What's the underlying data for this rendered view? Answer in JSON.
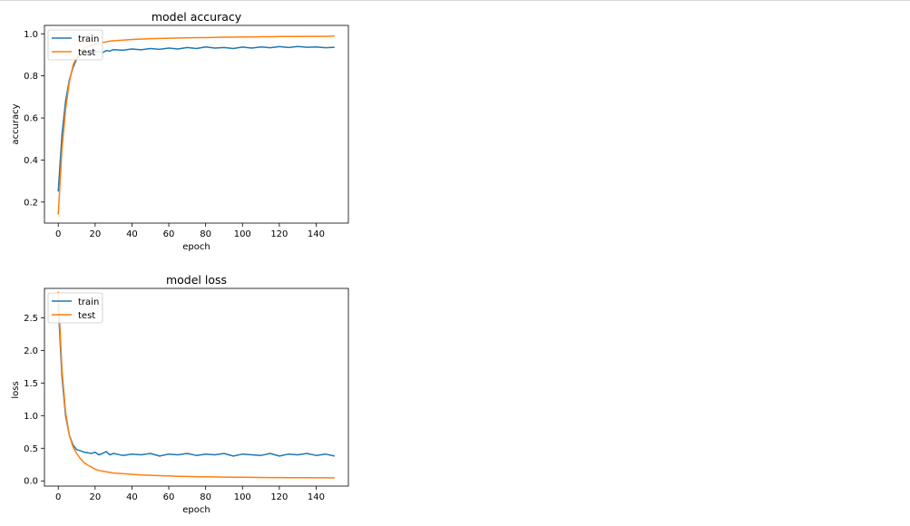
{
  "chart_data": [
    {
      "type": "line",
      "title": "model accuracy",
      "xlabel": "epoch",
      "ylabel": "accuracy",
      "xlim": [
        -7.5,
        157.5
      ],
      "ylim": [
        0.1,
        1.04
      ],
      "xticks": [
        0,
        20,
        40,
        60,
        80,
        100,
        120,
        140
      ],
      "xtick_labels": [
        "0",
        "20",
        "40",
        "60",
        "80",
        "100",
        "120",
        "140"
      ],
      "yticks": [
        0.2,
        0.4,
        0.6,
        0.8,
        1.0
      ],
      "ytick_labels": [
        "0.2",
        "0.4",
        "0.6",
        "0.8",
        "1.0"
      ],
      "legend_position": "upper-left",
      "grid": false,
      "series": [
        {
          "name": "train",
          "color": "#1f77b4",
          "x": [
            0,
            2,
            4,
            6,
            8,
            10,
            12,
            14,
            16,
            18,
            20,
            22,
            24,
            26,
            28,
            30,
            35,
            40,
            45,
            50,
            55,
            60,
            65,
            70,
            75,
            80,
            85,
            90,
            95,
            100,
            105,
            110,
            115,
            120,
            125,
            130,
            135,
            140,
            145,
            150
          ],
          "y": [
            0.25,
            0.52,
            0.68,
            0.78,
            0.84,
            0.88,
            0.9,
            0.905,
            0.91,
            0.915,
            0.912,
            0.918,
            0.91,
            0.92,
            0.918,
            0.925,
            0.922,
            0.928,
            0.924,
            0.93,
            0.926,
            0.932,
            0.928,
            0.935,
            0.93,
            0.938,
            0.932,
            0.935,
            0.93,
            0.937,
            0.932,
            0.938,
            0.934,
            0.939,
            0.935,
            0.94,
            0.936,
            0.938,
            0.934,
            0.936
          ]
        },
        {
          "name": "test",
          "color": "#ff7f0e",
          "x": [
            0,
            2,
            4,
            6,
            8,
            10,
            12,
            14,
            16,
            18,
            20,
            22,
            24,
            26,
            28,
            30,
            35,
            40,
            45,
            50,
            55,
            60,
            65,
            70,
            75,
            80,
            85,
            90,
            95,
            100,
            105,
            110,
            115,
            120,
            125,
            130,
            135,
            140,
            145,
            150
          ],
          "y": [
            0.14,
            0.45,
            0.64,
            0.77,
            0.85,
            0.89,
            0.915,
            0.93,
            0.94,
            0.945,
            0.95,
            0.955,
            0.958,
            0.962,
            0.965,
            0.967,
            0.97,
            0.973,
            0.975,
            0.977,
            0.978,
            0.979,
            0.98,
            0.981,
            0.982,
            0.982,
            0.983,
            0.984,
            0.984,
            0.985,
            0.985,
            0.986,
            0.986,
            0.987,
            0.987,
            0.987,
            0.988,
            0.988,
            0.988,
            0.989
          ]
        }
      ]
    },
    {
      "type": "line",
      "title": "model loss",
      "xlabel": "epoch",
      "ylabel": "loss",
      "xlim": [
        -7.5,
        157.5
      ],
      "ylim": [
        -0.08,
        2.95
      ],
      "xticks": [
        0,
        20,
        40,
        60,
        80,
        100,
        120,
        140
      ],
      "xtick_labels": [
        "0",
        "20",
        "40",
        "60",
        "80",
        "100",
        "120",
        "140"
      ],
      "yticks": [
        0.0,
        0.5,
        1.0,
        1.5,
        2.0,
        2.5
      ],
      "ytick_labels": [
        "0.0",
        "0.5",
        "1.0",
        "1.5",
        "2.0",
        "2.5"
      ],
      "legend_position": "upper-left",
      "grid": false,
      "series": [
        {
          "name": "train",
          "color": "#1f77b4",
          "x": [
            0,
            2,
            4,
            6,
            8,
            10,
            12,
            14,
            16,
            18,
            20,
            22,
            24,
            26,
            28,
            30,
            35,
            40,
            45,
            50,
            55,
            60,
            65,
            70,
            75,
            80,
            85,
            90,
            95,
            100,
            105,
            110,
            115,
            120,
            125,
            130,
            135,
            140,
            145,
            150
          ],
          "y": [
            2.7,
            1.6,
            1.0,
            0.7,
            0.55,
            0.48,
            0.46,
            0.44,
            0.43,
            0.42,
            0.44,
            0.4,
            0.42,
            0.45,
            0.4,
            0.42,
            0.39,
            0.41,
            0.4,
            0.42,
            0.38,
            0.41,
            0.4,
            0.42,
            0.39,
            0.41,
            0.4,
            0.42,
            0.38,
            0.41,
            0.4,
            0.39,
            0.42,
            0.38,
            0.41,
            0.4,
            0.42,
            0.39,
            0.41,
            0.38
          ]
        },
        {
          "name": "test",
          "color": "#ff7f0e",
          "x": [
            0,
            2,
            4,
            6,
            8,
            10,
            12,
            14,
            16,
            18,
            20,
            22,
            24,
            26,
            28,
            30,
            35,
            40,
            45,
            50,
            55,
            60,
            65,
            70,
            75,
            80,
            85,
            90,
            95,
            100,
            105,
            110,
            115,
            120,
            125,
            130,
            135,
            140,
            145,
            150
          ],
          "y": [
            2.9,
            1.7,
            1.05,
            0.7,
            0.52,
            0.42,
            0.34,
            0.28,
            0.24,
            0.21,
            0.18,
            0.16,
            0.15,
            0.14,
            0.13,
            0.12,
            0.11,
            0.1,
            0.09,
            0.085,
            0.08,
            0.075,
            0.07,
            0.068,
            0.065,
            0.062,
            0.06,
            0.058,
            0.056,
            0.055,
            0.053,
            0.052,
            0.05,
            0.05,
            0.049,
            0.048,
            0.048,
            0.047,
            0.047,
            0.046
          ]
        }
      ]
    }
  ]
}
